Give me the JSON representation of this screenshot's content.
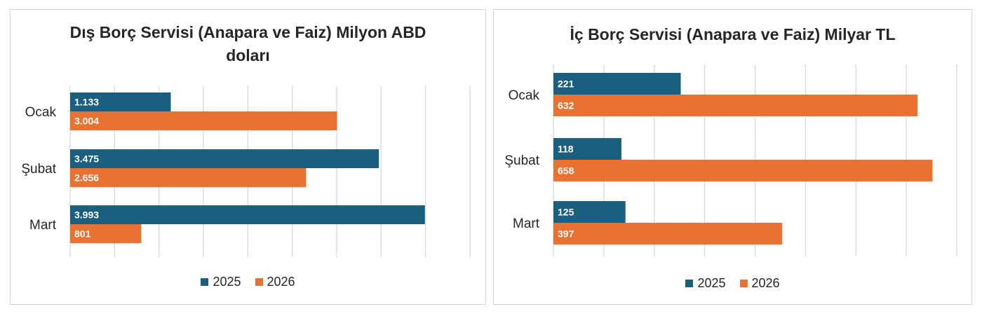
{
  "chart_data": [
    {
      "type": "bar",
      "orientation": "horizontal",
      "title": "Dış Borç Servisi (Anapara ve Faiz) Milyon ABD doları",
      "categories": [
        "Ocak",
        "Şubat",
        "Mart"
      ],
      "series": [
        {
          "name": "2025",
          "color": "#1b5f7f",
          "values": [
            1133,
            3475,
            3993
          ],
          "labels": [
            "1.133",
            "3.475",
            "3.993"
          ]
        },
        {
          "name": "2026",
          "color": "#e97132",
          "values": [
            3004,
            2656,
            801
          ],
          "labels": [
            "3.004",
            "2.656",
            "801"
          ]
        }
      ],
      "xlim": [
        0,
        4500
      ],
      "grid": true,
      "axis_tick_labels_shown": false,
      "legend_position": "bottom"
    },
    {
      "type": "bar",
      "orientation": "horizontal",
      "title": "İç Borç Servisi (Anapara ve Faiz) Milyar TL",
      "categories": [
        "Ocak",
        "Şubat",
        "Mart"
      ],
      "series": [
        {
          "name": "2025",
          "color": "#1b5f7f",
          "values": [
            221,
            118,
            125
          ],
          "labels": [
            "221",
            "118",
            "125"
          ]
        },
        {
          "name": "2026",
          "color": "#e97132",
          "values": [
            632,
            658,
            397
          ],
          "labels": [
            "632",
            "658",
            "397"
          ]
        }
      ],
      "xlim": [
        0,
        700
      ],
      "grid": true,
      "axis_tick_labels_shown": false,
      "legend_position": "bottom"
    }
  ]
}
